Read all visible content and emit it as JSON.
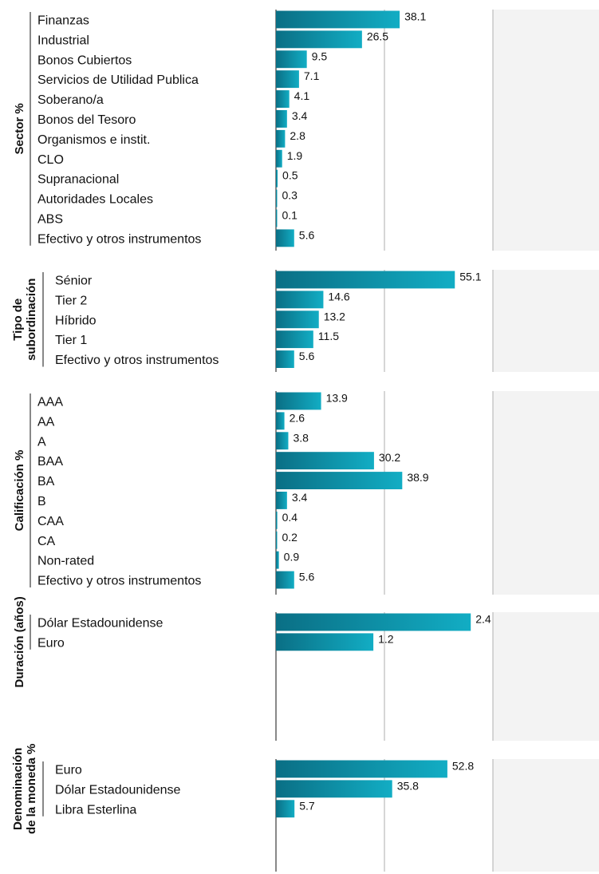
{
  "chart_data": [
    {
      "type": "bar",
      "orientation": "horizontal",
      "title": "Sector %",
      "categories": [
        "Finanzas",
        "Industrial",
        "Bonos Cubiertos",
        "Servicios de Utilidad Publica",
        "Soberano/a",
        "Bonos del Tesoro",
        "Organismos e instit.",
        "CLO",
        "Supranacional",
        "Autoridades Locales",
        "ABS",
        "Efectivo y otros instrumentos"
      ],
      "values": [
        38.1,
        26.5,
        9.5,
        7.1,
        4.1,
        3.4,
        2.8,
        1.9,
        0.5,
        0.3,
        0.1,
        5.6
      ],
      "xlim": [
        0,
        100
      ]
    },
    {
      "type": "bar",
      "orientation": "horizontal",
      "title": "Tipo de subordinación",
      "categories": [
        "Sénior",
        "Tier 2",
        "Híbrido",
        "Tier 1",
        "Efectivo y otros instrumentos"
      ],
      "values": [
        55.1,
        14.6,
        13.2,
        11.5,
        5.6
      ],
      "xlim": [
        0,
        100
      ]
    },
    {
      "type": "bar",
      "orientation": "horizontal",
      "title": "Calificación %",
      "categories": [
        "AAA",
        "AA",
        "A",
        "BAA",
        "BA",
        "B",
        "CAA",
        "CA",
        "Non-rated",
        "Efectivo y otros instrumentos"
      ],
      "values": [
        13.9,
        2.6,
        3.8,
        30.2,
        38.9,
        3.4,
        0.4,
        0.2,
        0.9,
        5.6
      ],
      "xlim": [
        0,
        100
      ]
    },
    {
      "type": "bar",
      "orientation": "horizontal",
      "title": "Duración (años)",
      "categories": [
        "Dólar Estadounidense",
        "Euro"
      ],
      "values": [
        2.4,
        1.2
      ],
      "xlim": [
        0,
        4
      ]
    },
    {
      "type": "bar",
      "orientation": "horizontal",
      "title": "Denominación de la moneda %",
      "categories": [
        "Euro",
        "Dólar Estadounidense",
        "Libra Esterlina"
      ],
      "values": [
        52.8,
        35.8,
        5.7
      ],
      "xlim": [
        0,
        100
      ]
    }
  ],
  "colors": {
    "bar_light": "#12adc4",
    "bar_dark": "#0a6f85",
    "panel_bg": "#f3f3f3",
    "grid": "#c8c8c8",
    "axis": "#888888"
  }
}
